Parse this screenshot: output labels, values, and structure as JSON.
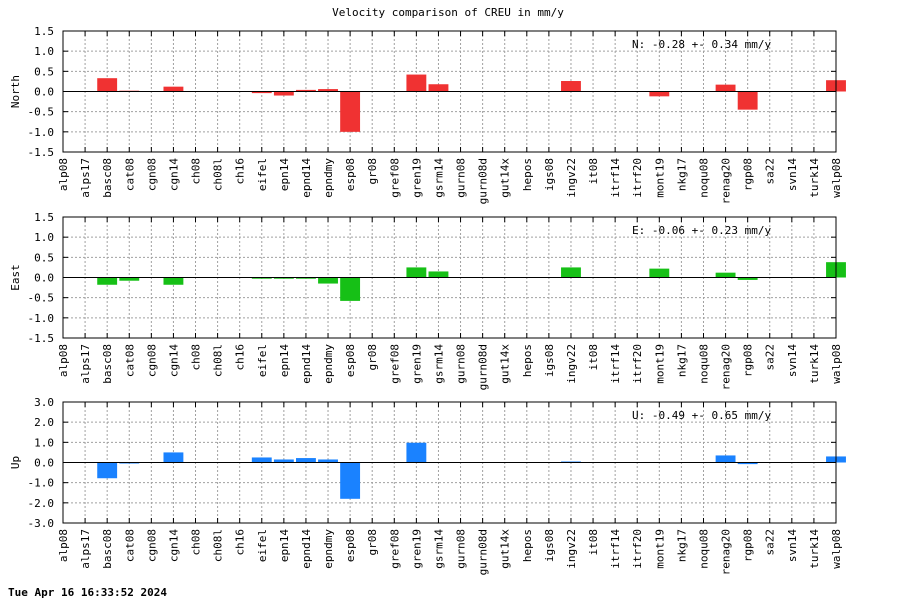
{
  "title": "Velocity comparison of CREU in mm/y",
  "footer": "Tue Apr 16 16:33:52 2024",
  "chart_data": [
    {
      "type": "bar",
      "ylabel": "North",
      "annotation": "N:  -0.28 +-  0.34 mm/y",
      "color": "#f03232",
      "ylim": [
        -1.5,
        1.5
      ],
      "yticks": [
        "-1.5",
        "-1.0",
        "-0.5",
        "0.0",
        "0.5",
        "1.0",
        "1.5"
      ],
      "grid": true,
      "categories": [
        "alp08",
        "alps17",
        "basc08",
        "cat08",
        "cgn08",
        "cgn14",
        "ch08",
        "ch08l",
        "ch16",
        "eifel",
        "epn14",
        "epnd14",
        "epndmy",
        "esp08",
        "gr08",
        "gref08",
        "gren19",
        "gsrm14",
        "gurn08",
        "gurn08d",
        "gut14x",
        "hepos",
        "igs08",
        "ingv22",
        "it08",
        "itrf14",
        "itrf20",
        "mont19",
        "nkg17",
        "noqu08",
        "renag20",
        "rgp08",
        "sa22",
        "svn14",
        "turk14",
        "walp08"
      ],
      "values": [
        0,
        0,
        0.33,
        0.02,
        0,
        0.12,
        0,
        0,
        0,
        -0.04,
        -0.1,
        0.04,
        0.06,
        -1.0,
        0,
        0,
        0.42,
        0.18,
        0,
        0,
        0,
        0,
        0,
        0.26,
        0,
        0,
        0,
        -0.12,
        0,
        0,
        0.17,
        -0.45,
        0,
        0,
        0,
        0.28
      ]
    },
    {
      "type": "bar",
      "ylabel": "East",
      "annotation": "E:  -0.06 +-  0.23 mm/y",
      "color": "#16c016",
      "ylim": [
        -1.5,
        1.5
      ],
      "yticks": [
        "-1.5",
        "-1.0",
        "-0.5",
        "0.0",
        "0.5",
        "1.0",
        "1.5"
      ],
      "grid": true,
      "categories": [
        "alp08",
        "alps17",
        "basc08",
        "cat08",
        "cgn08",
        "cgn14",
        "ch08",
        "ch08l",
        "ch16",
        "eifel",
        "epn14",
        "epnd14",
        "epndmy",
        "esp08",
        "gr08",
        "gref08",
        "gren19",
        "gsrm14",
        "gurn08",
        "gurn08d",
        "gut14x",
        "hepos",
        "igs08",
        "ingv22",
        "it08",
        "itrf14",
        "itrf20",
        "mont19",
        "nkg17",
        "noqu08",
        "renag20",
        "rgp08",
        "sa22",
        "svn14",
        "turk14",
        "walp08"
      ],
      "values": [
        0,
        0,
        -0.18,
        -0.08,
        0,
        -0.18,
        0,
        0,
        0,
        -0.03,
        -0.03,
        -0.03,
        -0.15,
        -0.58,
        0,
        0,
        0.25,
        0.15,
        0,
        0,
        0,
        0,
        0,
        0.25,
        0,
        0,
        0,
        0.22,
        0,
        0,
        0.12,
        -0.06,
        0,
        0,
        0,
        0.38
      ]
    },
    {
      "type": "bar",
      "ylabel": "Up",
      "annotation": "U:  -0.49 +-  0.65 mm/y",
      "color": "#1a82ff",
      "ylim": [
        -3.0,
        3.0
      ],
      "yticks": [
        "-3.0",
        "-2.0",
        "-1.0",
        "0.0",
        "1.0",
        "2.0",
        "3.0"
      ],
      "grid": true,
      "categories": [
        "alp08",
        "alps17",
        "basc08",
        "cat08",
        "cgn08",
        "cgn14",
        "ch08",
        "ch08l",
        "ch16",
        "eifel",
        "epn14",
        "epnd14",
        "epndmy",
        "esp08",
        "gr08",
        "gref08",
        "gren19",
        "gsrm14",
        "gurn08",
        "gurn08d",
        "gut14x",
        "hepos",
        "igs08",
        "ingv22",
        "it08",
        "itrf14",
        "itrf20",
        "mont19",
        "nkg17",
        "noqu08",
        "renag20",
        "rgp08",
        "sa22",
        "svn14",
        "turk14",
        "walp08"
      ],
      "values": [
        0,
        0,
        -0.78,
        -0.05,
        0,
        0.5,
        0,
        0,
        0,
        0.25,
        0.15,
        0.22,
        0.15,
        -1.8,
        0,
        0,
        0.98,
        0,
        0,
        0,
        0,
        0,
        0,
        0.05,
        0,
        0,
        0,
        0,
        0,
        0,
        0.35,
        -0.08,
        0,
        0,
        0,
        0.3
      ]
    }
  ]
}
